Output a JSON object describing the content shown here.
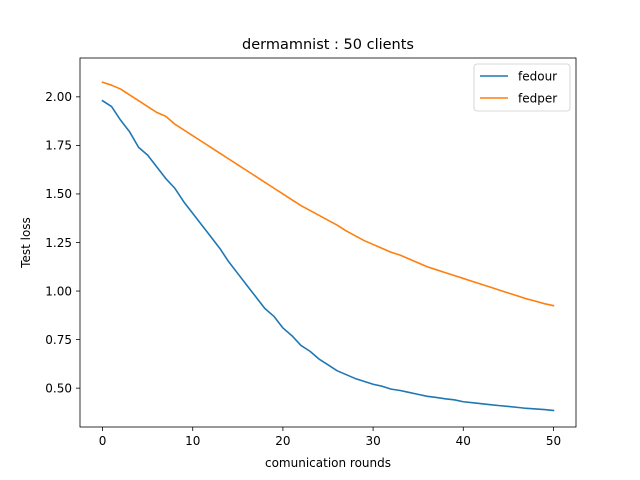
{
  "chart_data": {
    "type": "line",
    "title": "dermamnist : 50 clients",
    "xlabel": "comunication rounds",
    "ylabel": "Test loss",
    "xlim": [
      -2.5,
      52.5
    ],
    "ylim": [
      0.3,
      2.2
    ],
    "xticks": [
      0,
      10,
      20,
      30,
      40,
      50
    ],
    "yticks": [
      0.5,
      0.75,
      1.0,
      1.25,
      1.5,
      1.75,
      2.0
    ],
    "xtick_labels": [
      "0",
      "10",
      "20",
      "30",
      "40",
      "50"
    ],
    "ytick_labels": [
      "0.50",
      "0.75",
      "1.00",
      "1.25",
      "1.50",
      "1.75",
      "2.00"
    ],
    "grid": false,
    "legend_position": "top-right",
    "x": [
      0,
      1,
      2,
      3,
      4,
      5,
      6,
      7,
      8,
      9,
      10,
      11,
      12,
      13,
      14,
      15,
      16,
      17,
      18,
      19,
      20,
      21,
      22,
      23,
      24,
      25,
      26,
      27,
      28,
      29,
      30,
      31,
      32,
      33,
      34,
      35,
      36,
      37,
      38,
      39,
      40,
      41,
      42,
      43,
      44,
      45,
      46,
      47,
      48,
      49,
      50
    ],
    "series": [
      {
        "name": "fedour",
        "color": "#1f77b4",
        "values": [
          1.98,
          1.95,
          1.88,
          1.82,
          1.74,
          1.7,
          1.64,
          1.58,
          1.53,
          1.46,
          1.4,
          1.34,
          1.28,
          1.22,
          1.15,
          1.09,
          1.03,
          0.97,
          0.91,
          0.87,
          0.81,
          0.77,
          0.72,
          0.69,
          0.65,
          0.62,
          0.59,
          0.57,
          0.55,
          0.535,
          0.52,
          0.51,
          0.495,
          0.488,
          0.478,
          0.468,
          0.458,
          0.452,
          0.445,
          0.44,
          0.43,
          0.425,
          0.42,
          0.415,
          0.41,
          0.406,
          0.401,
          0.396,
          0.393,
          0.39,
          0.385
        ]
      },
      {
        "name": "fedper",
        "color": "#ff7f0e",
        "values": [
          2.075,
          2.06,
          2.04,
          2.01,
          1.98,
          1.95,
          1.92,
          1.9,
          1.86,
          1.83,
          1.8,
          1.77,
          1.74,
          1.71,
          1.68,
          1.65,
          1.62,
          1.59,
          1.56,
          1.53,
          1.5,
          1.47,
          1.44,
          1.415,
          1.39,
          1.365,
          1.34,
          1.31,
          1.285,
          1.26,
          1.24,
          1.22,
          1.2,
          1.185,
          1.165,
          1.145,
          1.125,
          1.11,
          1.095,
          1.08,
          1.065,
          1.05,
          1.035,
          1.02,
          1.005,
          0.99,
          0.975,
          0.96,
          0.948,
          0.935,
          0.925
        ]
      }
    ]
  }
}
